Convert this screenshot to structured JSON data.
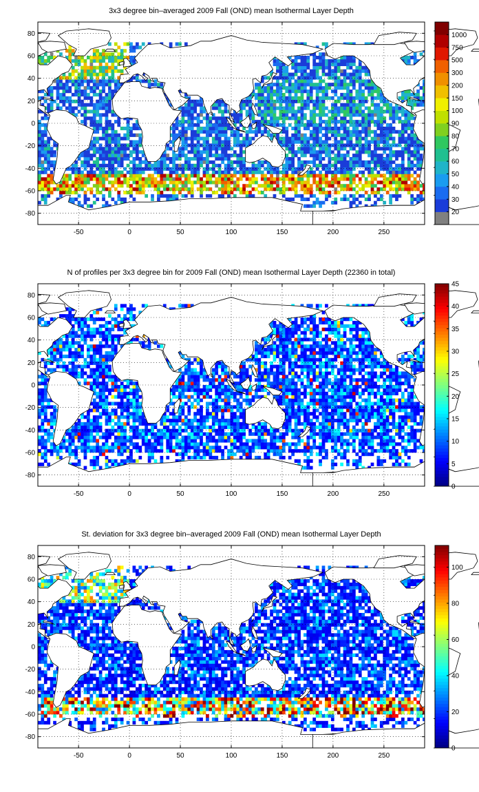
{
  "maps": [
    {
      "title": "3x3 degree bin–averaged 2009 Fall (OND) mean Isothermal Layer Depth",
      "x_ticks": [
        "-50",
        "0",
        "50",
        "100",
        "150",
        "200",
        "250"
      ],
      "y_ticks": [
        "80",
        "60",
        "40",
        "20",
        "0",
        "-20",
        "-40",
        "-60",
        "-80"
      ],
      "colorbar": {
        "type": "categorical",
        "labels": [
          "20",
          "30",
          "40",
          "50",
          "60",
          "70",
          "80",
          "90",
          "100",
          "150",
          "200",
          "300",
          "500",
          "750",
          "1000"
        ],
        "colors": [
          "#808080",
          "#1a3cd9",
          "#1a6cf0",
          "#1a9cf0",
          "#20b4c8",
          "#20c090",
          "#30c860",
          "#80d020",
          "#c0e000",
          "#f0f000",
          "#f0c000",
          "#f09000",
          "#f06000",
          "#e01800",
          "#b00000",
          "#800000"
        ]
      }
    },
    {
      "title": "N of profiles per 3x3 degree bin for 2009 Fall (OND) mean Isothermal Layer Depth  (22360 in total)",
      "x_ticks": [
        "-50",
        "0",
        "50",
        "100",
        "150",
        "200",
        "250"
      ],
      "y_ticks": [
        "80",
        "60",
        "40",
        "20",
        "0",
        "-20",
        "-40",
        "-60",
        "-80"
      ],
      "colorbar": {
        "type": "continuous",
        "min": 0,
        "max": 45,
        "labels": [
          "0",
          "5",
          "10",
          "15",
          "20",
          "25",
          "30",
          "35",
          "40",
          "45"
        ]
      }
    },
    {
      "title": "St. deviation for 3x3 degree bin–averaged 2009 Fall (OND) mean Isothermal Layer Depth",
      "x_ticks": [
        "-50",
        "0",
        "50",
        "100",
        "150",
        "200",
        "250"
      ],
      "y_ticks": [
        "80",
        "60",
        "40",
        "20",
        "0",
        "-20",
        "-40",
        "-60",
        "-80"
      ],
      "colorbar": {
        "type": "continuous",
        "min": 0,
        "max": 112,
        "labels": [
          "0",
          "20",
          "40",
          "60",
          "80",
          "100"
        ]
      }
    }
  ],
  "axes": {
    "lon_range": [
      -90,
      290
    ],
    "lat_range": [
      -90,
      90
    ],
    "x_tick_values": [
      -50,
      0,
      50,
      100,
      150,
      200,
      250
    ],
    "y_tick_values": [
      80,
      60,
      40,
      20,
      0,
      -20,
      -40,
      -60,
      -80
    ],
    "grid": "dotted"
  },
  "colors": {
    "land": "#ffffff",
    "coast": "#000000",
    "jet_low": "#00008f",
    "jet_high": "#800000"
  }
}
